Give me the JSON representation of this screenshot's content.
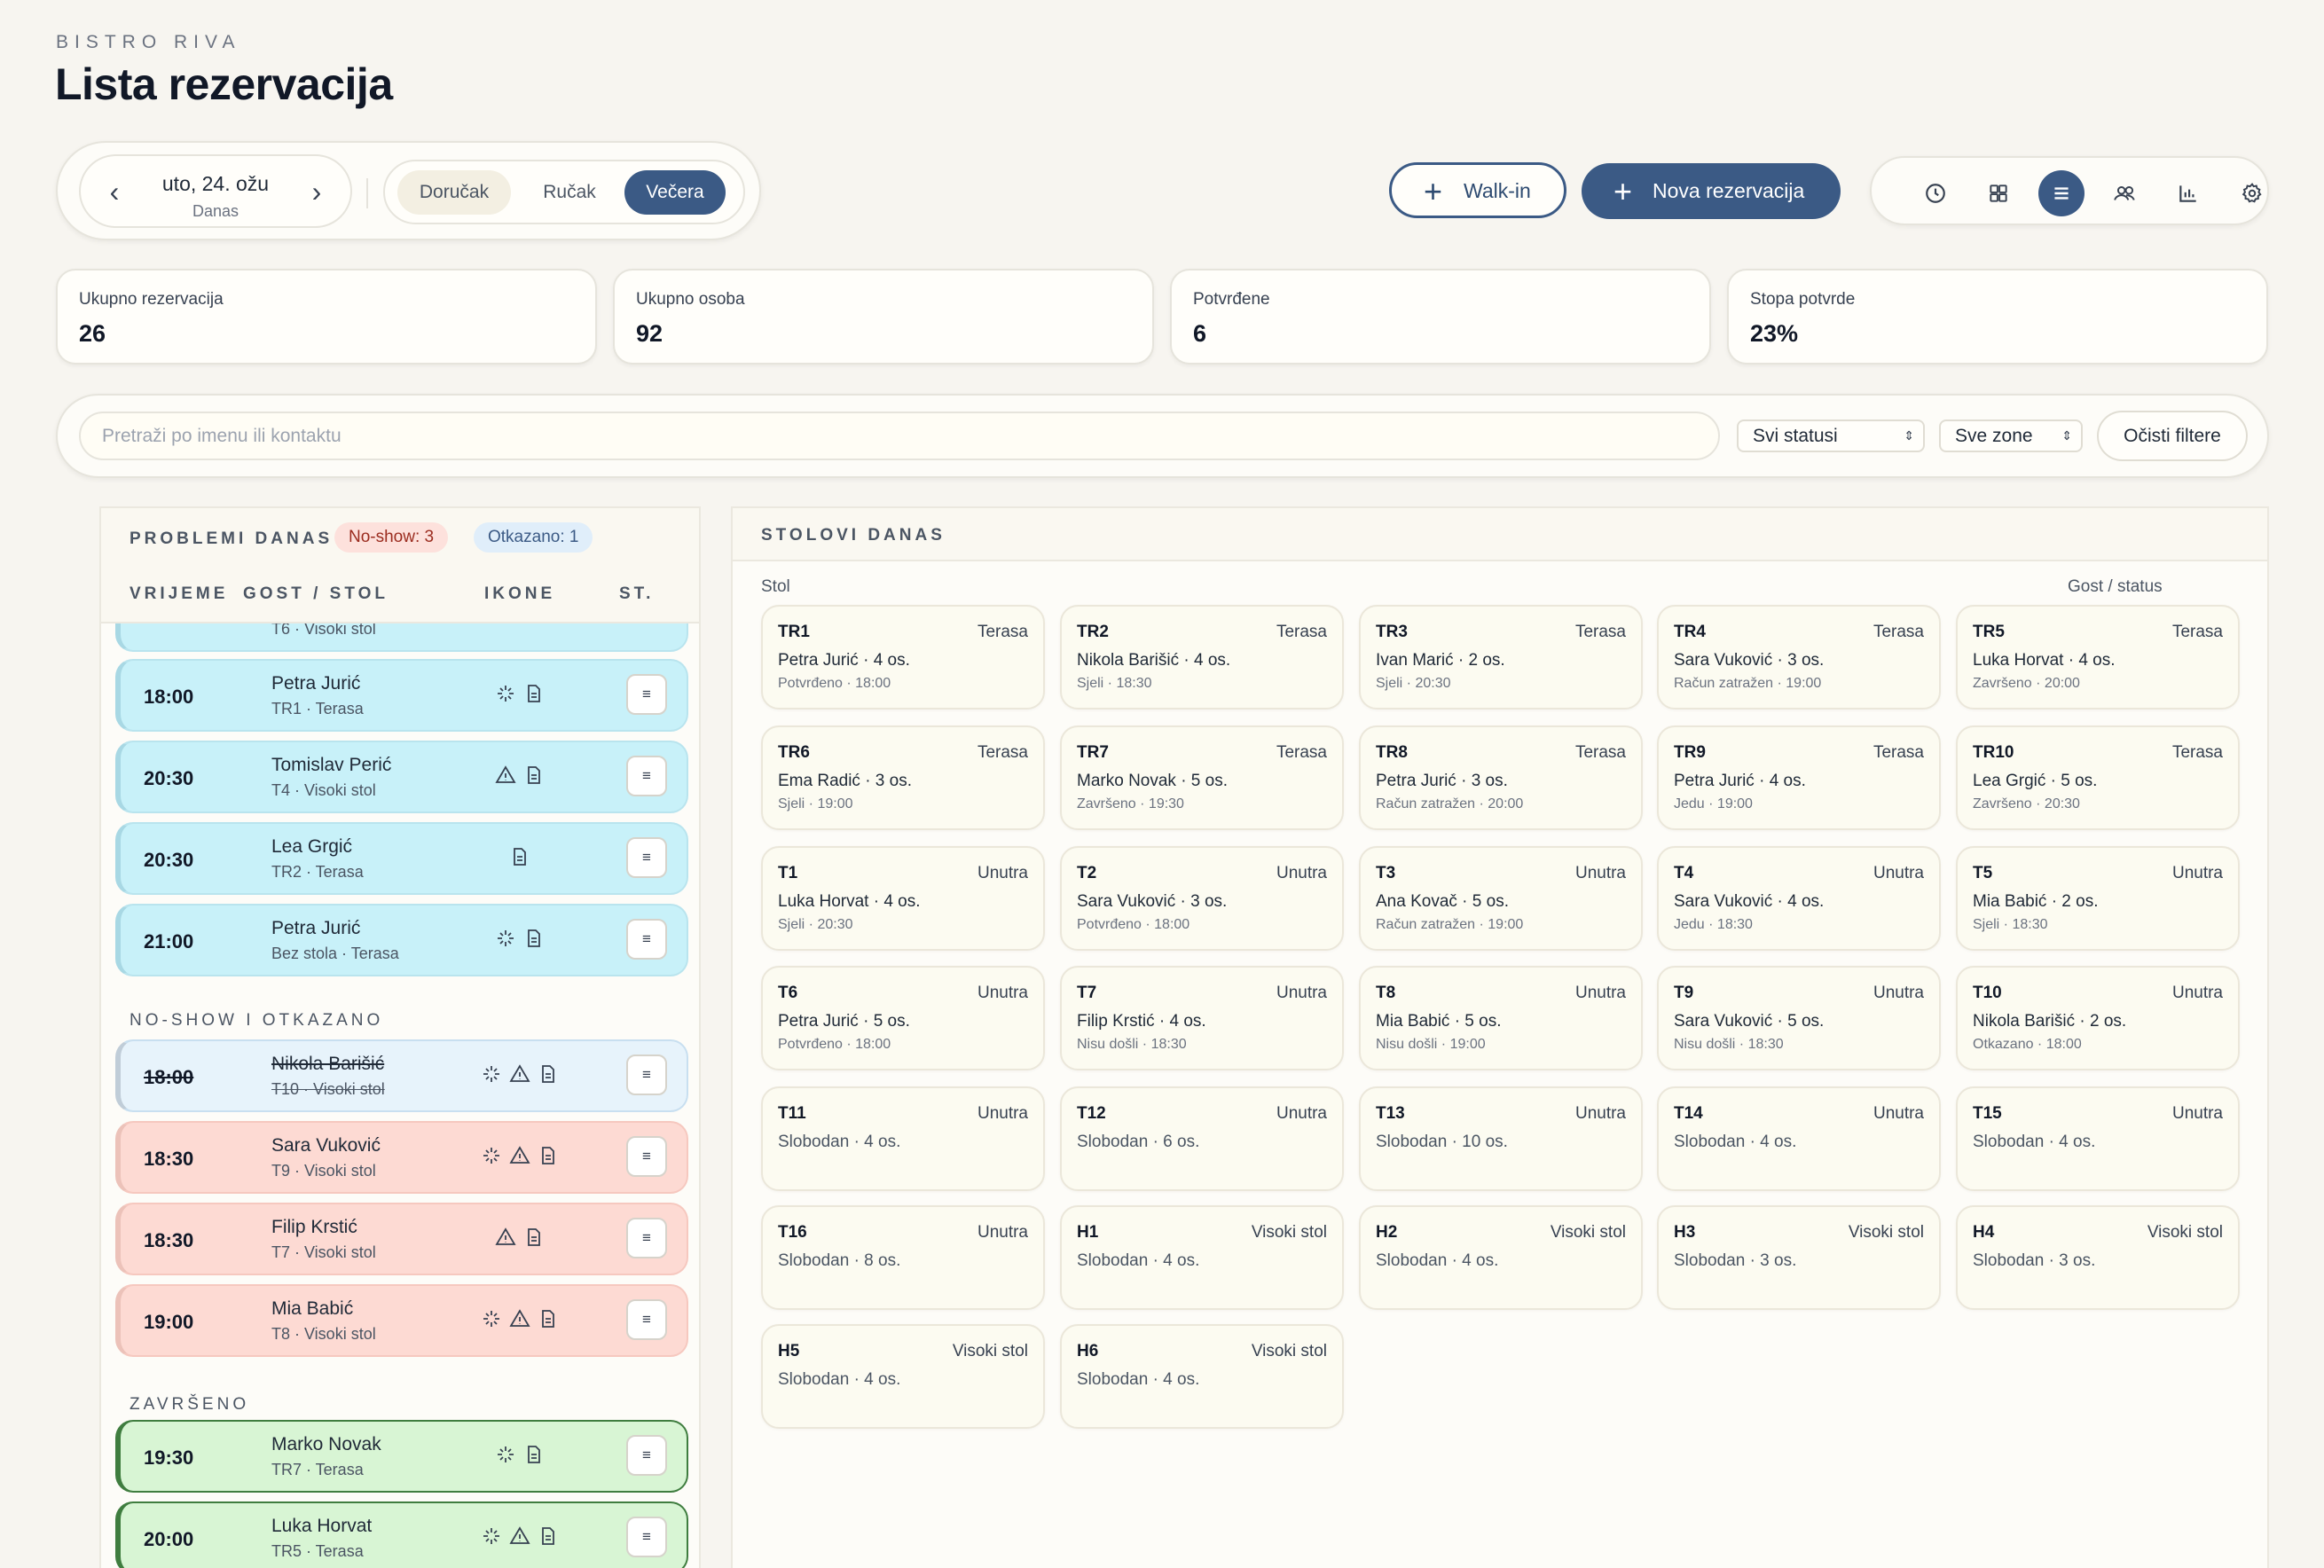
{
  "brand": "BISTRO RIVA",
  "title": "Lista rezervacija",
  "date": {
    "main": "uto, 24. ožu",
    "sub": "Danas"
  },
  "meals": [
    "Doručak",
    "Ručak",
    "Večera"
  ],
  "actions": {
    "walkin": "Walk-in",
    "new": "Nova rezervacija"
  },
  "views": [
    "clock-icon",
    "grid-icon",
    "list-icon",
    "users-icon",
    "chart-icon",
    "gear-icon"
  ],
  "stats": [
    {
      "label": "Ukupno rezervacija",
      "value": "26"
    },
    {
      "label": "Ukupno osoba",
      "value": "92"
    },
    {
      "label": "Potvrđene",
      "value": "6"
    },
    {
      "label": "Stopa potvrde",
      "value": "23%"
    }
  ],
  "filters": {
    "search_placeholder": "Pretraži po imenu ili kontaktu",
    "status": "Svi statusi",
    "zone": "Sve zone",
    "clear": "Očisti filtere"
  },
  "left": {
    "title": "PROBLEMI DANAS",
    "badge_noshow": "No-show: 3",
    "badge_cancel": "Otkazano: 1",
    "cols": [
      "VRIJEME",
      "GOST / STOL",
      "IKONE",
      "ST."
    ],
    "partial_row_sub": "T6 · Visoki stol",
    "section_noshow": "NO-SHOW I OTKAZANO",
    "section_done": "ZAVRŠENO",
    "st_label": "≡",
    "rows": [
      {
        "time": "18:00",
        "name": "Petra Jurić",
        "sub": "TR1 · Terasa",
        "kind": "blue",
        "icons": [
          "sparkle",
          "note"
        ]
      },
      {
        "time": "20:30",
        "name": "Tomislav Perić",
        "sub": "T4 · Visoki stol",
        "kind": "blue",
        "icons": [
          "warn",
          "note"
        ]
      },
      {
        "time": "20:30",
        "name": "Lea Grgić",
        "sub": "TR2 · Terasa",
        "kind": "blue",
        "icons": [
          "note"
        ]
      },
      {
        "time": "21:00",
        "name": "Petra Jurić",
        "sub": "Bez stola · Terasa",
        "kind": "blue",
        "icons": [
          "sparkle",
          "note"
        ]
      },
      {
        "time": "18:00",
        "name": "Nikola Barišić",
        "sub": "T10 · Visoki stol",
        "kind": "lblue",
        "icons": [
          "sparkle",
          "warn",
          "note"
        ]
      },
      {
        "time": "18:30",
        "name": "Sara Vuković",
        "sub": "T9 · Visoki stol",
        "kind": "red",
        "icons": [
          "sparkle",
          "warn",
          "note"
        ]
      },
      {
        "time": "18:30",
        "name": "Filip Krstić",
        "sub": "T7 · Visoki stol",
        "kind": "red",
        "icons": [
          "warn",
          "note"
        ]
      },
      {
        "time": "19:00",
        "name": "Mia Babić",
        "sub": "T8 · Visoki stol",
        "kind": "red",
        "icons": [
          "sparkle",
          "warn",
          "note"
        ]
      },
      {
        "time": "19:30",
        "name": "Marko Novak",
        "sub": "TR7 · Terasa",
        "kind": "green",
        "icons": [
          "sparkle",
          "note"
        ]
      },
      {
        "time": "20:00",
        "name": "Luka Horvat",
        "sub": "TR5 · Terasa",
        "kind": "green",
        "icons": [
          "sparkle",
          "warn",
          "note"
        ]
      }
    ]
  },
  "right": {
    "title": "STOLOVI DANAS",
    "col_left": "Stol",
    "col_right": "Gost / status",
    "tables": [
      {
        "id": "TR1",
        "zone": "Terasa",
        "guest": "Petra Jurić · 4 os.",
        "status": "Potvrđeno · 18:00"
      },
      {
        "id": "TR2",
        "zone": "Terasa",
        "guest": "Nikola Barišić · 4 os.",
        "status": "Sjeli · 18:30"
      },
      {
        "id": "TR3",
        "zone": "Terasa",
        "guest": "Ivan Marić · 2 os.",
        "status": "Sjeli · 20:30"
      },
      {
        "id": "TR4",
        "zone": "Terasa",
        "guest": "Sara Vuković · 3 os.",
        "status": "Račun zatražen · 19:00"
      },
      {
        "id": "TR5",
        "zone": "Terasa",
        "guest": "Luka Horvat · 4 os.",
        "status": "Završeno · 20:00"
      },
      {
        "id": "TR6",
        "zone": "Terasa",
        "guest": "Ema Radić · 3 os.",
        "status": "Sjeli · 19:00"
      },
      {
        "id": "TR7",
        "zone": "Terasa",
        "guest": "Marko Novak · 5 os.",
        "status": "Završeno · 19:30"
      },
      {
        "id": "TR8",
        "zone": "Terasa",
        "guest": "Petra Jurić · 3 os.",
        "status": "Račun zatražen · 20:00"
      },
      {
        "id": "TR9",
        "zone": "Terasa",
        "guest": "Petra Jurić · 4 os.",
        "status": "Jedu · 19:00"
      },
      {
        "id": "TR10",
        "zone": "Terasa",
        "guest": "Lea Grgić · 5 os.",
        "status": "Završeno · 20:30"
      },
      {
        "id": "T1",
        "zone": "Unutra",
        "guest": "Luka Horvat · 4 os.",
        "status": "Sjeli · 20:30"
      },
      {
        "id": "T2",
        "zone": "Unutra",
        "guest": "Sara Vuković · 3 os.",
        "status": "Potvrđeno · 18:00"
      },
      {
        "id": "T3",
        "zone": "Unutra",
        "guest": "Ana Kovač · 5 os.",
        "status": "Račun zatražen · 19:00"
      },
      {
        "id": "T4",
        "zone": "Unutra",
        "guest": "Sara Vuković · 4 os.",
        "status": "Jedu · 18:30"
      },
      {
        "id": "T5",
        "zone": "Unutra",
        "guest": "Mia Babić · 2 os.",
        "status": "Sjeli · 18:30"
      },
      {
        "id": "T6",
        "zone": "Unutra",
        "guest": "Petra Jurić · 5 os.",
        "status": "Potvrđeno · 18:00"
      },
      {
        "id": "T7",
        "zone": "Unutra",
        "guest": "Filip Krstić · 4 os.",
        "status": "Nisu došli · 18:30"
      },
      {
        "id": "T8",
        "zone": "Unutra",
        "guest": "Mia Babić · 5 os.",
        "status": "Nisu došli · 19:00"
      },
      {
        "id": "T9",
        "zone": "Unutra",
        "guest": "Sara Vuković · 5 os.",
        "status": "Nisu došli · 18:30"
      },
      {
        "id": "T10",
        "zone": "Unutra",
        "guest": "Nikola Barišić · 2 os.",
        "status": "Otkazano · 18:00"
      },
      {
        "id": "T11",
        "zone": "Unutra",
        "free": "Slobodan · 4 os."
      },
      {
        "id": "T12",
        "zone": "Unutra",
        "free": "Slobodan · 6 os."
      },
      {
        "id": "T13",
        "zone": "Unutra",
        "free": "Slobodan · 10 os."
      },
      {
        "id": "T14",
        "zone": "Unutra",
        "free": "Slobodan · 4 os."
      },
      {
        "id": "T15",
        "zone": "Unutra",
        "free": "Slobodan · 4 os."
      },
      {
        "id": "T16",
        "zone": "Unutra",
        "free": "Slobodan · 8 os."
      },
      {
        "id": "H1",
        "zone": "Visoki stol",
        "free": "Slobodan · 4 os."
      },
      {
        "id": "H2",
        "zone": "Visoki stol",
        "free": "Slobodan · 4 os."
      },
      {
        "id": "H3",
        "zone": "Visoki stol",
        "free": "Slobodan · 3 os."
      },
      {
        "id": "H4",
        "zone": "Visoki stol",
        "free": "Slobodan · 3 os."
      },
      {
        "id": "H5",
        "zone": "Visoki stol",
        "free": "Slobodan · 4 os."
      },
      {
        "id": "H6",
        "zone": "Visoki stol",
        "free": "Slobodan · 4 os."
      }
    ]
  }
}
